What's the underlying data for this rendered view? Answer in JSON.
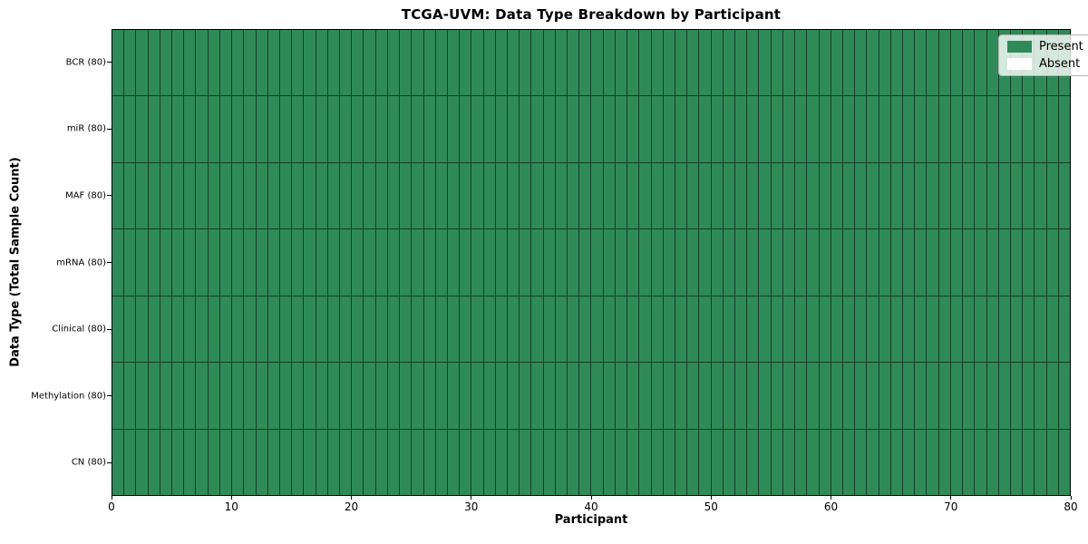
{
  "chart_data": {
    "type": "heatmap",
    "title": "TCGA-UVM: Data Type Breakdown by Participant",
    "xlabel": "Participant",
    "ylabel": "Data Type (Total Sample Count)",
    "xlim": [
      0,
      80
    ],
    "x_ticks": [
      0,
      10,
      20,
      30,
      40,
      50,
      60,
      70,
      80
    ],
    "n_participants": 80,
    "grid": true,
    "rows": [
      {
        "label": "BCR (80)",
        "data_type": "BCR",
        "total_samples": 80,
        "present": 80,
        "absent": 0
      },
      {
        "label": "miR (80)",
        "data_type": "miR",
        "total_samples": 80,
        "present": 80,
        "absent": 0
      },
      {
        "label": "MAF (80)",
        "data_type": "MAF",
        "total_samples": 80,
        "present": 80,
        "absent": 0
      },
      {
        "label": "mRNA (80)",
        "data_type": "mRNA",
        "total_samples": 80,
        "present": 80,
        "absent": 0
      },
      {
        "label": "Clinical (80)",
        "data_type": "Clinical",
        "total_samples": 80,
        "present": 80,
        "absent": 0
      },
      {
        "label": "Methylation (80)",
        "data_type": "Methylation",
        "total_samples": 80,
        "present": 80,
        "absent": 0
      },
      {
        "label": "CN (80)",
        "data_type": "CN",
        "total_samples": 80,
        "present": 80,
        "absent": 0
      }
    ],
    "legend": {
      "position": "upper right",
      "entries": [
        {
          "label": "Present",
          "color": "#2e8b57"
        },
        {
          "label": "Absent",
          "color": "#ffffff"
        }
      ]
    },
    "colors": {
      "present": "#2e8b57",
      "absent": "#ffffff",
      "cell_edge": "#173d28",
      "spine": "#000000"
    }
  }
}
